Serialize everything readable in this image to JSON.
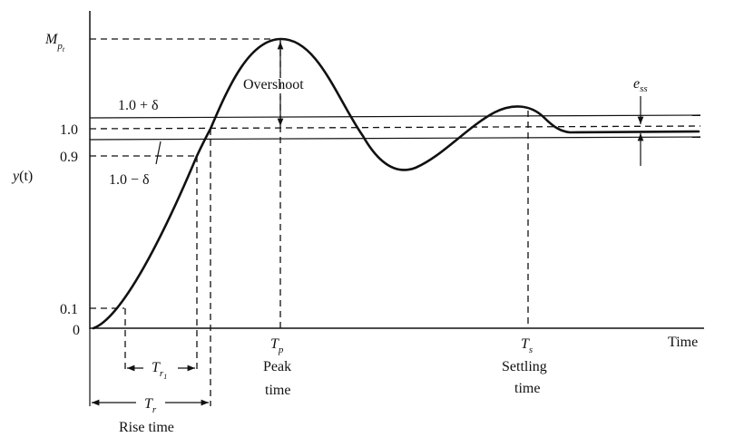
{
  "axes": {
    "y_label_main": "y",
    "y_label_arg": "(t)",
    "x_label": "Time",
    "origin_label": "0",
    "tick_0_1": "0.1",
    "tick_0_9": "0.9",
    "tick_1_0": "1.0"
  },
  "bands": {
    "upper": "1.0 + δ",
    "lower": "1.0 − δ"
  },
  "peak": {
    "m_main": "M",
    "m_sub": "p",
    "m_subsub": "t",
    "overshoot": "Overshoot",
    "tp_main": "T",
    "tp_sub": "p",
    "caption_1": "Peak",
    "caption_2": "time"
  },
  "settling": {
    "ts_main": "T",
    "ts_sub": "s",
    "caption_1": "Settling",
    "caption_2": "time"
  },
  "steady_state": {
    "ess_main": "e",
    "ess_sub": "ss"
  },
  "rise": {
    "tr1_main": "T",
    "tr1_sub": "r",
    "tr1_subsub": "1",
    "tr_main": "T",
    "tr_sub": "r",
    "caption": "Rise time"
  }
}
